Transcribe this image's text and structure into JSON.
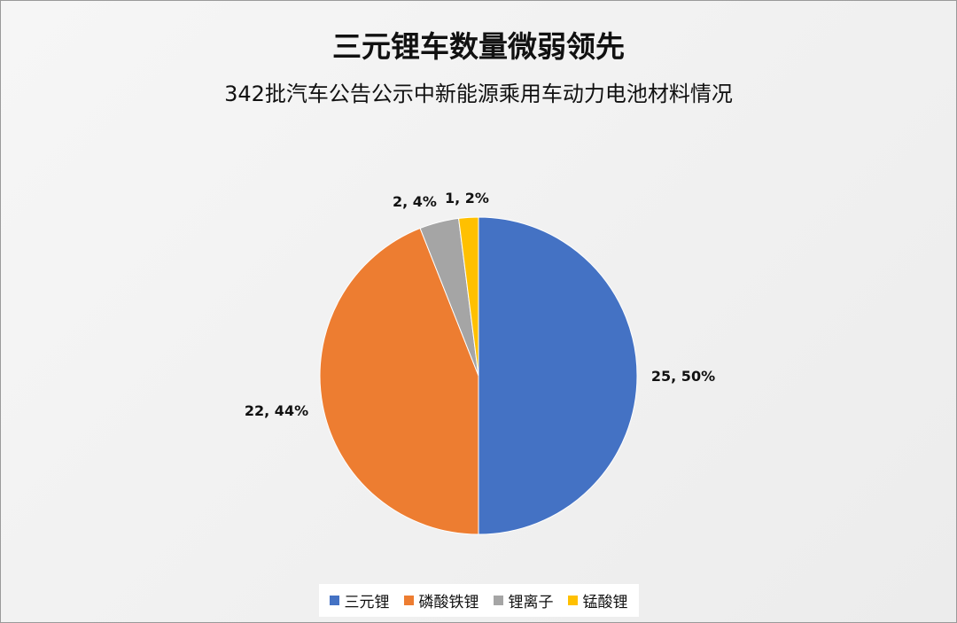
{
  "chart_data": {
    "type": "pie",
    "title": "三元锂车数量微弱领先",
    "subtitle": "342批汽车公告公示中新能源乘用车动力电池材料情况",
    "slices": [
      {
        "name": "三元锂",
        "value": 25,
        "percent": "50%",
        "color": "#4472c4"
      },
      {
        "name": "磷酸铁锂",
        "value": 22,
        "percent": "44%",
        "color": "#ed7d31"
      },
      {
        "name": "锂离子",
        "value": 2,
        "percent": "4%",
        "color": "#a5a5a5"
      },
      {
        "name": "锰酸锂",
        "value": 1,
        "percent": "2%",
        "color": "#ffc000"
      }
    ],
    "legend_position": "bottom",
    "data_labels": [
      "25, 50%",
      "22, 44%",
      "2, 4%",
      "1, 2%"
    ]
  }
}
